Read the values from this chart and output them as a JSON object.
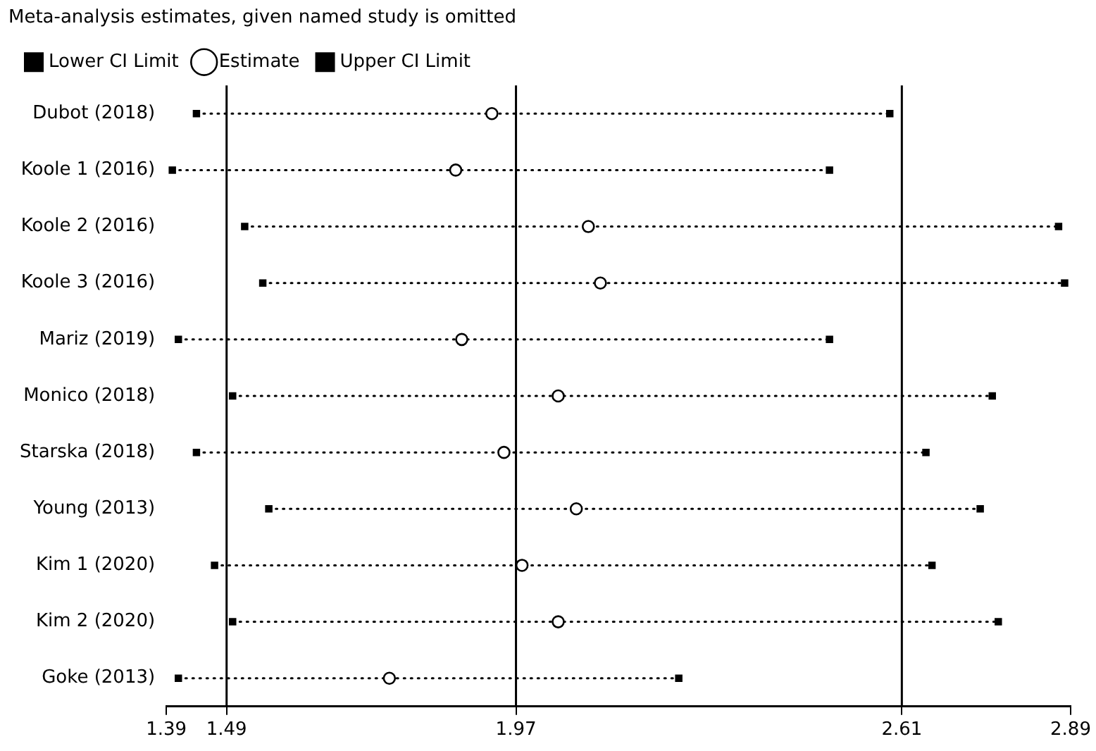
{
  "chart_data": {
    "type": "scatter",
    "orientation": "horizontal",
    "legend_title": "Meta-analysis estimates, given named study is omitted",
    "legend": "top",
    "categories": [
      "Dubot (2018)",
      "Koole 1 (2016)",
      "Koole 2 (2016)",
      "Koole 3 (2016)",
      "Mariz (2019)",
      "Monico (2018)",
      "Starska (2018)",
      "Young (2013)",
      "Kim 1 (2020)",
      "Kim 2 (2020)",
      "Goke (2013)"
    ],
    "series": [
      {
        "name": "Lower CI Limit",
        "color": "#000000",
        "marker": "square",
        "values": [
          1.44,
          1.4,
          1.52,
          1.55,
          1.41,
          1.5,
          1.44,
          1.56,
          1.47,
          1.5,
          1.41
        ]
      },
      {
        "name": "Estimate",
        "color": "#000000",
        "marker": "circle",
        "line_style": "dotted",
        "values": [
          1.93,
          1.87,
          2.09,
          2.11,
          1.88,
          2.04,
          1.95,
          2.07,
          1.98,
          2.04,
          1.76
        ]
      },
      {
        "name": "Upper CI Limit",
        "color": "#000000",
        "marker": "square",
        "values": [
          2.59,
          2.49,
          2.87,
          2.88,
          2.49,
          2.76,
          2.65,
          2.74,
          2.66,
          2.77,
          2.24
        ]
      }
    ],
    "xlim": [
      1.39,
      2.89
    ],
    "xticks": [
      1.39,
      1.49,
      1.97,
      2.61,
      2.89
    ],
    "grid": false,
    "ref_lines": [
      {
        "axis": "x",
        "value": 1.49,
        "color": "#000000"
      },
      {
        "axis": "x",
        "value": 1.97,
        "color": "#000000"
      },
      {
        "axis": "x",
        "value": 2.61,
        "color": "#000000"
      }
    ]
  }
}
